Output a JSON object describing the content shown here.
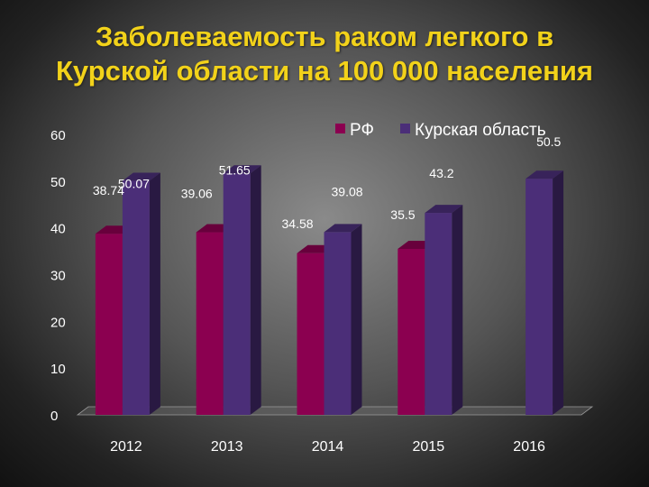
{
  "title_line1": "Заболеваемость раком легкого в",
  "title_line2": "Курской области на 100 000 населения",
  "colors": {
    "rf": "#8b0050",
    "kursk": "#4b2e78",
    "title": "#f2d21a"
  },
  "chart_data": {
    "type": "bar",
    "categories": [
      "2012",
      "2013",
      "2014",
      "2015",
      "2016"
    ],
    "series": [
      {
        "name": "РФ",
        "values": [
          38.74,
          39.06,
          34.58,
          35.5,
          null
        ]
      },
      {
        "name": "Курская область",
        "values": [
          50.07,
          51.65,
          39.08,
          43.2,
          50.5
        ]
      }
    ],
    "data_labels": [
      {
        "series": 0,
        "index": 0,
        "text": "38.74"
      },
      {
        "series": 1,
        "index": 0,
        "text": "50.07"
      },
      {
        "series": 0,
        "index": 1,
        "text": "39.06"
      },
      {
        "series": 1,
        "index": 1,
        "text": "51.65"
      },
      {
        "series": 0,
        "index": 2,
        "text": "34.58"
      },
      {
        "series": 1,
        "index": 2,
        "text": "39.08"
      },
      {
        "series": 0,
        "index": 3,
        "text": "35.5"
      },
      {
        "series": 1,
        "index": 3,
        "text": "43.2"
      },
      {
        "series": 1,
        "index": 4,
        "text": "50.5"
      }
    ],
    "ylim": [
      0,
      60
    ],
    "yticks": [
      "0",
      "10",
      "20",
      "30",
      "40",
      "50",
      "60"
    ],
    "legend_position": "top-right",
    "grid": false
  }
}
